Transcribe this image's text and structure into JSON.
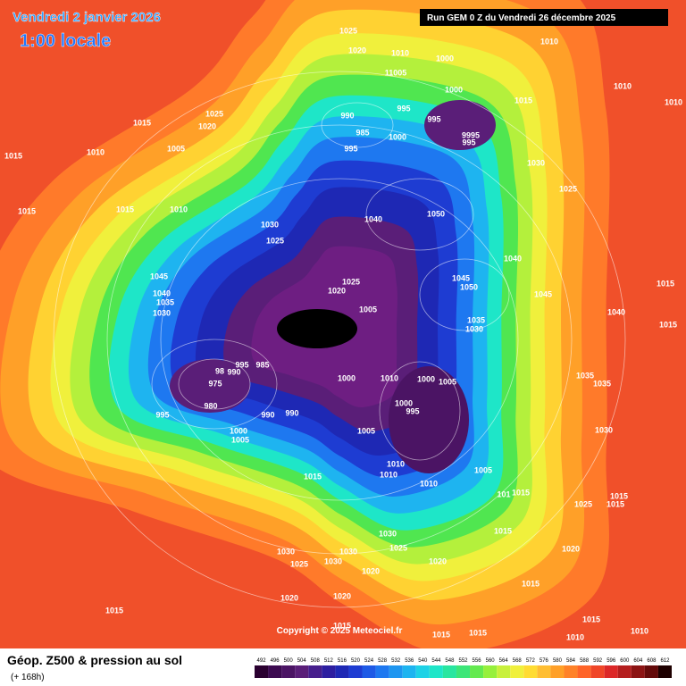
{
  "header": {
    "date": "Vendredi 2 janvier 2026",
    "time": "1:00 locale",
    "run": "Run GEM 0 Z du Vendredi 26 décembre 2025"
  },
  "copyright": "Copyright © 2025 Meteociel.fr",
  "legend": {
    "title": "Géop. Z500 & pression au sol",
    "subtitle": "(+ 168h)",
    "values": [
      492,
      496,
      500,
      504,
      508,
      512,
      516,
      520,
      524,
      528,
      532,
      536,
      540,
      544,
      548,
      552,
      556,
      560,
      564,
      568,
      572,
      576,
      580,
      584,
      588,
      592,
      596,
      600,
      604,
      608,
      612
    ],
    "colors": [
      "#2a0030",
      "#3c0a50",
      "#4b1464",
      "#5a1e78",
      "#461e8c",
      "#2d1ea0",
      "#1e28b4",
      "#1e3cd2",
      "#1e5ae6",
      "#1e78f0",
      "#1e96f0",
      "#1eb4f0",
      "#1ed2e6",
      "#1ee6c8",
      "#28e6a0",
      "#3ce678",
      "#64ea50",
      "#96f03c",
      "#c8f03c",
      "#f0f03c",
      "#ffdc32",
      "#ffbe32",
      "#ffa028",
      "#ff8228",
      "#ff6428",
      "#f04628",
      "#dc2828",
      "#b41e1e",
      "#8c1414",
      "#640a0a",
      "#1e0000"
    ]
  },
  "isobars": [
    "1025",
    "1020",
    "1010",
    "1000",
    "11005",
    "1010",
    "1010",
    "1010",
    "1000",
    "1015",
    "995",
    "990",
    "995",
    "985",
    "9995",
    "995",
    "1000",
    "995",
    "1025",
    "1020",
    "1015",
    "1010",
    "1005",
    "1015",
    "1030",
    "1025",
    "1015",
    "1010",
    "1015",
    "1040",
    "1050",
    "1030",
    "1025",
    "1040",
    "1045",
    "1050",
    "1025",
    "1020",
    "1045",
    "1040",
    "1015",
    "1015",
    "1045",
    "1040",
    "1035",
    "1030",
    "1005",
    "1035",
    "1030",
    "995",
    "985",
    "98",
    "990",
    "975",
    "1000",
    "1010",
    "1000",
    "1005",
    "1035",
    "1035",
    "980",
    "1000",
    "995",
    "995",
    "990",
    "990",
    "1000",
    "1005",
    "1005",
    "1030",
    "1010",
    "1010",
    "1005",
    "1010",
    "1015",
    "101",
    "1015",
    "1015",
    "1015",
    "1025",
    "1030",
    "1025",
    "1015",
    "1020",
    "1030",
    "1030",
    "1025",
    "1030",
    "1020",
    "1020",
    "1015",
    "1020",
    "1020",
    "1015",
    "1015",
    "1015",
    "1015",
    "1015",
    "1010",
    "1010"
  ]
}
